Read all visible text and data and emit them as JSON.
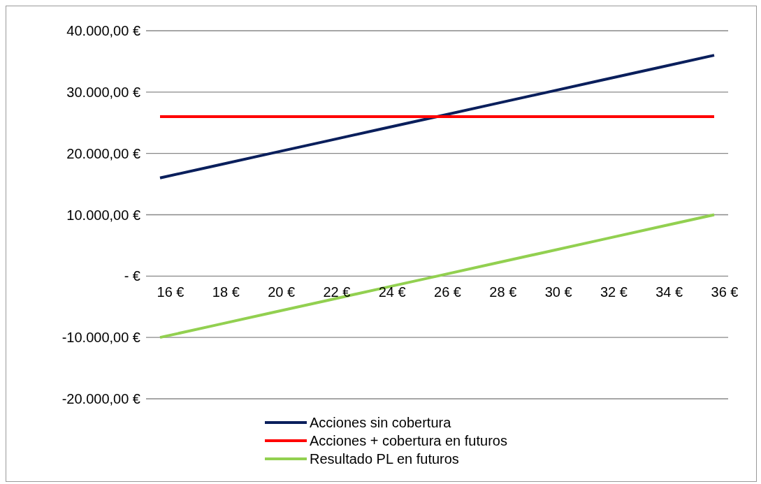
{
  "chart_data": {
    "type": "line",
    "categories": [
      "16 €",
      "18 €",
      "20 €",
      "22 €",
      "24 €",
      "26 €",
      "28 €",
      "30 €",
      "32 €",
      "34 €",
      "36 €"
    ],
    "series": [
      {
        "name": "Acciones sin cobertura",
        "color": "#0a1f5c",
        "values": [
          16000,
          18000,
          20000,
          22000,
          24000,
          26000,
          28000,
          30000,
          32000,
          34000,
          36000
        ]
      },
      {
        "name": "Acciones + cobertura en futuros",
        "color": "#ff0000",
        "values": [
          26000,
          26000,
          26000,
          26000,
          26000,
          26000,
          26000,
          26000,
          26000,
          26000,
          26000
        ]
      },
      {
        "name": "Resultado PL en futuros",
        "color": "#92d050",
        "values": [
          -10000,
          -8000,
          -6000,
          -4000,
          -2000,
          0,
          2000,
          4000,
          6000,
          8000,
          10000
        ]
      }
    ],
    "ylim": [
      -20000,
      40000
    ],
    "yticks": [
      {
        "value": -20000,
        "label": "-20.000,00 €"
      },
      {
        "value": -10000,
        "label": "-10.000,00 €"
      },
      {
        "value": 0,
        "label": "-   €"
      },
      {
        "value": 10000,
        "label": "10.000,00 €"
      },
      {
        "value": 20000,
        "label": "20.000,00 €"
      },
      {
        "value": 30000,
        "label": "30.000,00 €"
      },
      {
        "value": 40000,
        "label": "40.000,00 €"
      }
    ],
    "grid": "y",
    "legend": "bottom",
    "marker": "none",
    "line_style": "solid"
  }
}
